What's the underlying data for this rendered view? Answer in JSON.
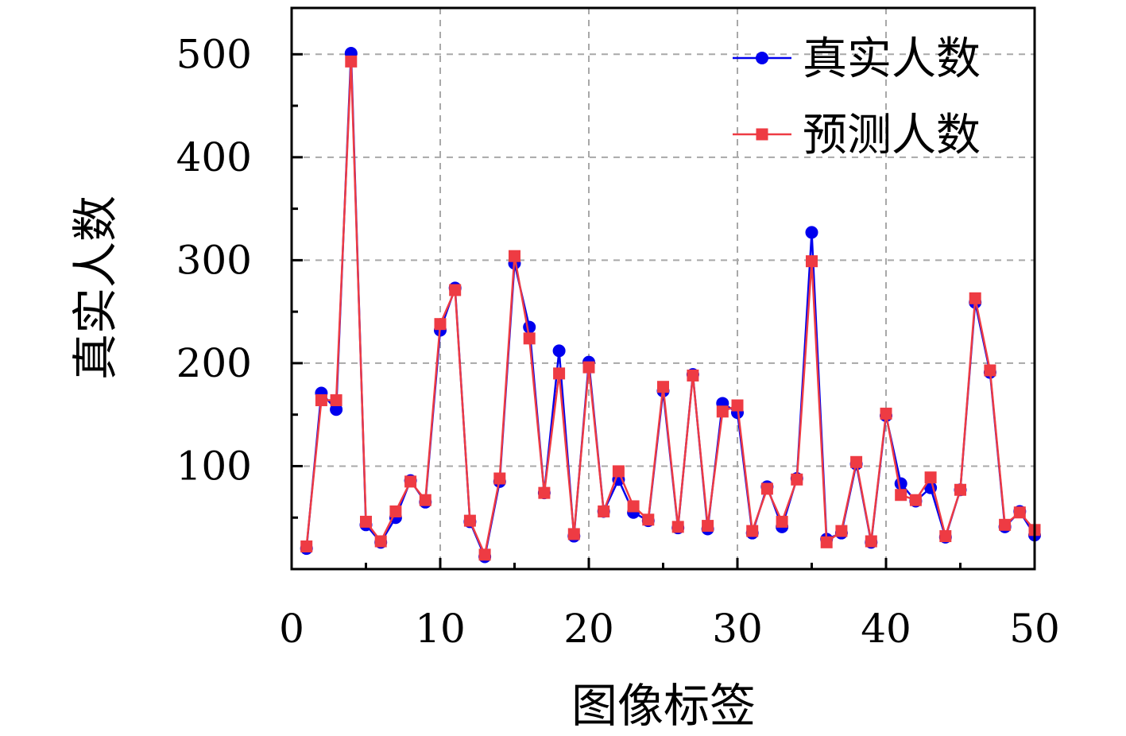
{
  "chart_data": {
    "type": "line",
    "xlabel": "图像标签",
    "ylabel": "真实人数",
    "xlim": [
      0,
      50
    ],
    "ylim": [
      0,
      545
    ],
    "x_ticks": [
      0,
      10,
      20,
      30,
      40,
      50
    ],
    "y_ticks": [
      100,
      200,
      300,
      400,
      500
    ],
    "grid": true,
    "legend_position": "top-right",
    "x": [
      1,
      2,
      3,
      4,
      5,
      6,
      7,
      8,
      9,
      10,
      11,
      12,
      13,
      14,
      15,
      16,
      17,
      18,
      19,
      20,
      21,
      22,
      23,
      24,
      25,
      26,
      27,
      28,
      29,
      30,
      31,
      32,
      33,
      34,
      35,
      36,
      37,
      38,
      39,
      40,
      41,
      42,
      43,
      44,
      45,
      46,
      47,
      48,
      49,
      50
    ],
    "series": [
      {
        "name": "真实人数",
        "color": "#0000ee",
        "marker": "circle",
        "values": [
          20,
          171,
          155,
          501,
          43,
          26,
          50,
          86,
          65,
          232,
          273,
          46,
          12,
          85,
          297,
          235,
          74,
          212,
          32,
          201,
          56,
          87,
          55,
          47,
          173,
          40,
          189,
          39,
          161,
          152,
          35,
          80,
          41,
          88,
          327,
          29,
          35,
          102,
          26,
          149,
          83,
          66,
          79,
          31,
          77,
          259,
          191,
          41,
          56,
          33
        ]
      },
      {
        "name": "预测人数",
        "color": "#ee3b43",
        "marker": "square",
        "values": [
          22,
          164,
          164,
          493,
          46,
          27,
          56,
          85,
          67,
          238,
          271,
          47,
          14,
          88,
          304,
          224,
          74,
          190,
          34,
          196,
          56,
          95,
          61,
          48,
          177,
          41,
          188,
          42,
          153,
          159,
          37,
          78,
          46,
          87,
          299,
          26,
          37,
          104,
          27,
          151,
          72,
          67,
          89,
          32,
          77,
          263,
          193,
          43,
          55,
          38
        ]
      }
    ]
  }
}
